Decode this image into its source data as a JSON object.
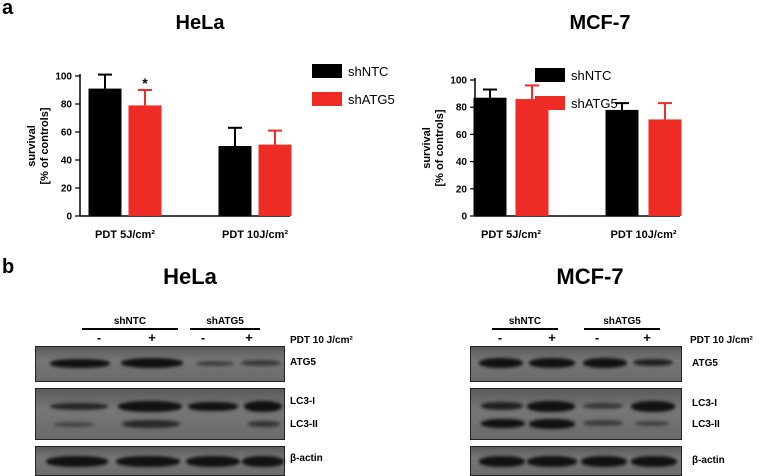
{
  "panels": {
    "a": "a",
    "b": "b"
  },
  "colors": {
    "shNTC": "#000000",
    "shATG5": "#ee2b24"
  },
  "chart_data": [
    {
      "type": "bar",
      "title": "HeLa",
      "ylabel": "survival\n[% of controls]",
      "ylim": [
        0,
        100
      ],
      "yticks": [
        0,
        20,
        40,
        60,
        80,
        100
      ],
      "categories": [
        "PDT 5J/cm²",
        "PDT 10J/cm²"
      ],
      "series": [
        {
          "name": "shNTC",
          "values": [
            91,
            50
          ],
          "errors": [
            10,
            13
          ]
        },
        {
          "name": "shATG5",
          "values": [
            79,
            51
          ],
          "errors": [
            11,
            10
          ]
        }
      ],
      "annotations": [
        {
          "text": "*",
          "category": "PDT 5J/cm²",
          "series": "shATG5"
        }
      ],
      "legend": "top-right"
    },
    {
      "type": "bar",
      "title": "MCF-7",
      "ylabel": "survival\n[% of controls]",
      "ylim": [
        0,
        100
      ],
      "yticks": [
        0,
        20,
        40,
        60,
        80,
        100
      ],
      "categories": [
        "PDT 5J/cm²",
        "PDT 10J/cm²"
      ],
      "series": [
        {
          "name": "shNTC",
          "values": [
            87,
            78
          ],
          "errors": [
            6,
            5
          ]
        },
        {
          "name": "shATG5",
          "values": [
            86,
            71
          ],
          "errors": [
            10,
            12
          ]
        }
      ],
      "legend": "top-right"
    }
  ],
  "blots": [
    {
      "title": "HeLa",
      "groups": [
        "shNTC",
        "shATG5"
      ],
      "signs": [
        "-",
        "+",
        "-",
        "+"
      ],
      "treatment": "PDT 10 J/cm²",
      "proteins": [
        "ATG5",
        "LC3-I",
        "LC3-II",
        "β-actin"
      ]
    },
    {
      "title": "MCF-7",
      "groups": [
        "shNTC",
        "shATG5"
      ],
      "signs": [
        "-",
        "+",
        "-",
        "+"
      ],
      "treatment": "PDT 10 J/cm²",
      "proteins": [
        "ATG5",
        "LC3-I",
        "LC3-II",
        "β-actin"
      ]
    }
  ]
}
